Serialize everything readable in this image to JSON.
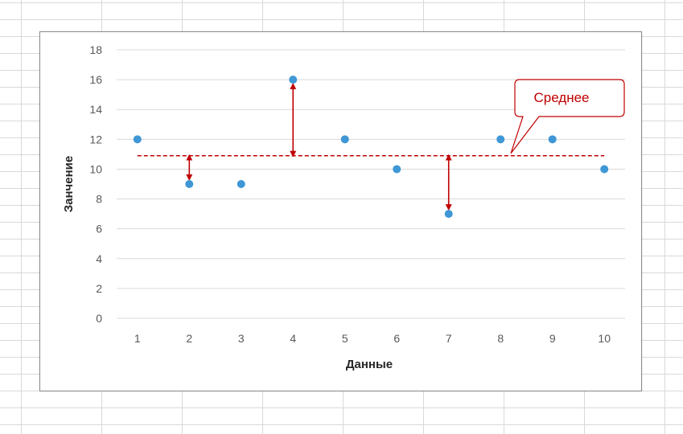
{
  "chart_data": {
    "type": "scatter",
    "x": [
      1,
      2,
      3,
      4,
      5,
      6,
      7,
      8,
      9,
      10
    ],
    "y": [
      12,
      9,
      9,
      16,
      12,
      10,
      7,
      12,
      12,
      10
    ],
    "xlabel": "Данные",
    "ylabel": "Занчение",
    "xlim": [
      0.6,
      10.4
    ],
    "ylim": [
      0,
      18
    ],
    "yticks": [
      0,
      2,
      4,
      6,
      8,
      10,
      12,
      14,
      16,
      18
    ],
    "xticks": [
      1,
      2,
      3,
      4,
      5,
      6,
      7,
      8,
      9,
      10
    ],
    "grid": true,
    "mean_value": 10.9,
    "mean_label": "Среднее",
    "deviation_arrows_at_x": [
      2,
      4,
      7
    ],
    "colors": {
      "points": "#3f97d6",
      "mean_line": "#c00000",
      "arrows": "#c00000",
      "gridlines": "#d9d9d9"
    }
  }
}
